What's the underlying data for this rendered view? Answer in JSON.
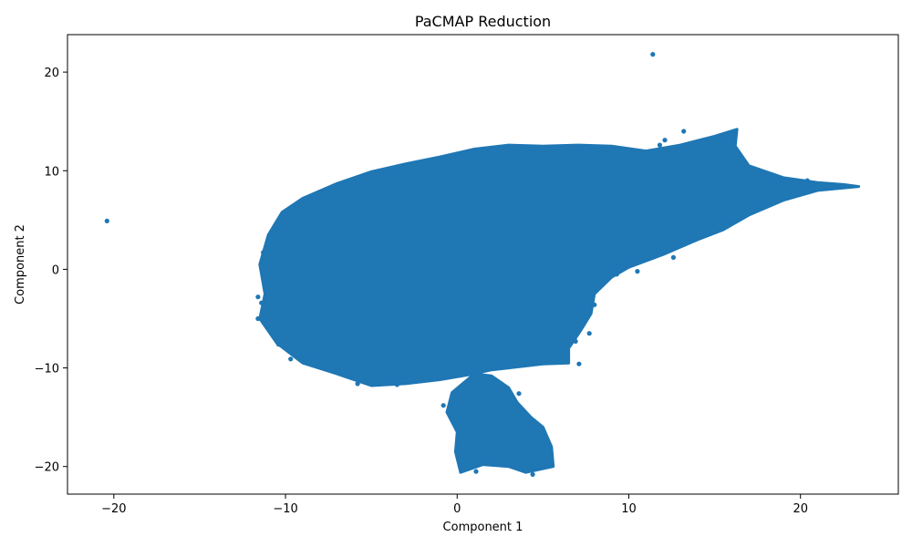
{
  "chart_data": {
    "type": "scatter",
    "title": "PaCMAP Reduction",
    "xlabel": "Component 1",
    "ylabel": "Component 2",
    "xlim": [
      -22.7,
      25.7
    ],
    "ylim": [
      -22.8,
      23.8
    ],
    "xticks": [
      -20,
      -10,
      0,
      10,
      20
    ],
    "yticks": [
      -20,
      -10,
      0,
      10,
      20
    ],
    "xtick_labels": [
      "−20",
      "−10",
      "0",
      "10",
      "20"
    ],
    "ytick_labels": [
      "−20",
      "−10",
      "0",
      "10",
      "20"
    ],
    "grid": false,
    "legend": "none",
    "color": "#1f77b4",
    "series": [
      {
        "regions": [
          {
            "kind": "main-cluster",
            "boundary": [
              [
                -10.2,
                5.8
              ],
              [
                -9,
                7.2
              ],
              [
                -7,
                8.7
              ],
              [
                -5,
                9.9
              ],
              [
                -3,
                10.7
              ],
              [
                -1,
                11.4
              ],
              [
                1,
                12.2
              ],
              [
                3,
                12.6
              ],
              [
                5,
                12.5
              ],
              [
                7,
                12.6
              ],
              [
                9,
                12.5
              ],
              [
                11,
                12.0
              ],
              [
                13,
                12.6
              ],
              [
                15,
                13.5
              ],
              [
                16.3,
                14.2
              ],
              [
                16.2,
                12.5
              ],
              [
                17,
                10.5
              ],
              [
                19,
                9.3
              ],
              [
                21,
                8.8
              ],
              [
                22.5,
                8.6
              ],
              [
                23.4,
                8.4
              ],
              [
                21,
                8.0
              ],
              [
                19,
                7.0
              ],
              [
                17,
                5.5
              ],
              [
                15.5,
                4.0
              ],
              [
                14,
                3.0
              ],
              [
                12,
                1.5
              ],
              [
                10,
                0.2
              ],
              [
                9,
                -0.8
              ],
              [
                8,
                -2.5
              ],
              [
                7.8,
                -4.5
              ],
              [
                7.2,
                -6.2
              ],
              [
                6.5,
                -8.0
              ],
              [
                6.5,
                -9.5
              ],
              [
                5,
                -9.6
              ],
              [
                3,
                -10.0
              ],
              [
                2,
                -10.2
              ],
              [
                1,
                -10.6
              ],
              [
                -1,
                -11.2
              ],
              [
                -3,
                -11.6
              ],
              [
                -5,
                -11.8
              ],
              [
                -7,
                -10.6
              ],
              [
                -9,
                -9.5
              ],
              [
                -10.5,
                -7.5
              ],
              [
                -11.5,
                -5.0
              ],
              [
                -11.2,
                -2.5
              ],
              [
                -11.5,
                0.5
              ],
              [
                -11.0,
                3.5
              ]
            ]
          },
          {
            "kind": "lower-cluster",
            "boundary": [
              [
                -0.3,
                -12.5
              ],
              [
                1,
                -10.6
              ],
              [
                2,
                -10.8
              ],
              [
                3,
                -12.0
              ],
              [
                3.5,
                -13.5
              ],
              [
                4.3,
                -15.0
              ],
              [
                5,
                -16.0
              ],
              [
                5.5,
                -18.0
              ],
              [
                5.6,
                -20.0
              ],
              [
                4,
                -20.6
              ],
              [
                3,
                -20.0
              ],
              [
                1.5,
                -19.8
              ],
              [
                0.2,
                -20.6
              ],
              [
                -0.1,
                -18.5
              ],
              [
                0,
                -16.5
              ],
              [
                -0.6,
                -14.5
              ]
            ]
          }
        ],
        "outliers": [
          [
            -20.4,
            4.9
          ],
          [
            11.4,
            21.8
          ],
          [
            13.2,
            14.0
          ],
          [
            12.1,
            13.1
          ],
          [
            11.8,
            12.6
          ],
          [
            -11.3,
            1.7
          ],
          [
            -11.6,
            -2.8
          ],
          [
            -11.6,
            -5.0
          ],
          [
            -10.4,
            -7.6
          ],
          [
            -8.2,
            -8.7
          ],
          [
            -7.0,
            -10.0
          ],
          [
            3.6,
            -12.6
          ],
          [
            7.7,
            -6.5
          ],
          [
            7.1,
            -9.6
          ],
          [
            9.3,
            -0.5
          ],
          [
            12.6,
            1.2
          ],
          [
            16.0,
            11.8
          ],
          [
            18.1,
            9.5
          ],
          [
            20.4,
            9.0
          ],
          [
            -0.8,
            -13.8
          ],
          [
            7.0,
            -4.1
          ],
          [
            -3.5,
            -11.7
          ],
          [
            -5.8,
            -11.6
          ],
          [
            4.4,
            -20.8
          ],
          [
            1.1,
            -20.5
          ],
          [
            10.5,
            -0.2
          ],
          [
            8.0,
            -3.6
          ],
          [
            6.9,
            -7.3
          ],
          [
            -11.4,
            -3.4
          ],
          [
            -9.7,
            -9.1
          ]
        ]
      }
    ]
  }
}
